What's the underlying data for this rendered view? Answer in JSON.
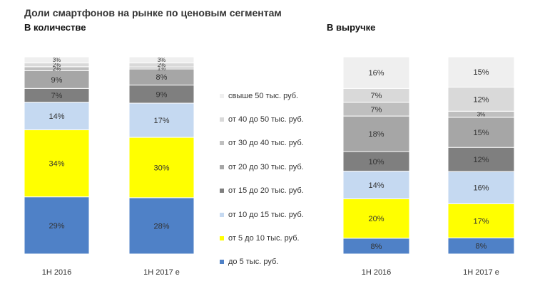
{
  "title": "Доли смартфонов на рынке по ценовым сегментам",
  "chart_data": [
    {
      "type": "bar",
      "stacked": true,
      "subtitle": "В количестве",
      "categories": [
        "1H 2016",
        "1H 2017 e"
      ],
      "series": [
        {
          "name": "до 5 тыс. руб.",
          "color": "#4f81c7",
          "values": [
            29,
            28
          ],
          "labels": [
            "29%",
            "28%"
          ]
        },
        {
          "name": "от 5 до 10 тыс. руб.",
          "color": "#ffff00",
          "values": [
            34,
            30
          ],
          "labels": [
            "34%",
            "30%"
          ]
        },
        {
          "name": "от 10 до 15 тыс. руб.",
          "color": "#c5d9f1",
          "values": [
            14,
            17
          ],
          "labels": [
            "14%",
            "17%"
          ]
        },
        {
          "name": "от 15 до 20 тыс. руб.",
          "color": "#7f7f7f",
          "values": [
            7,
            9
          ],
          "labels": [
            "7%",
            "9%"
          ]
        },
        {
          "name": "от 20 до 30 тыс. руб.",
          "color": "#a6a6a6",
          "values": [
            9,
            8
          ],
          "labels": [
            "9%",
            "8%"
          ]
        },
        {
          "name": "от 30 до 40 тыс. руб.",
          "color": "#bfbfbf",
          "values": [
            2,
            1
          ],
          "labels": [
            "2%",
            "1%"
          ]
        },
        {
          "name": "от 40 до 50 тыс. руб.",
          "color": "#d9d9d9",
          "values": [
            2,
            2
          ],
          "labels": [
            "2%",
            "2%"
          ]
        },
        {
          "name": "свыше 50 тыс. руб.",
          "color": "#efefef",
          "values": [
            3,
            3
          ],
          "labels": [
            "3%",
            "3%"
          ]
        }
      ]
    },
    {
      "type": "bar",
      "stacked": true,
      "subtitle": "В выручке",
      "categories": [
        "1H 2016",
        "1H 2017 e"
      ],
      "series": [
        {
          "name": "до 5 тыс. руб.",
          "color": "#4f81c7",
          "values": [
            8,
            8
          ],
          "labels": [
            "8%",
            "8%"
          ]
        },
        {
          "name": "от 5 до 10 тыс. руб.",
          "color": "#ffff00",
          "values": [
            20,
            17
          ],
          "labels": [
            "20%",
            "17%"
          ]
        },
        {
          "name": "от 10 до 15 тыс. руб.",
          "color": "#c5d9f1",
          "values": [
            14,
            16
          ],
          "labels": [
            "14%",
            "16%"
          ]
        },
        {
          "name": "от 15 до 20 тыс. руб.",
          "color": "#7f7f7f",
          "values": [
            10,
            12
          ],
          "labels": [
            "10%",
            "12%"
          ]
        },
        {
          "name": "от 20 до 30 тыс. руб.",
          "color": "#a6a6a6",
          "values": [
            18,
            15
          ],
          "labels": [
            "18%",
            "15%"
          ]
        },
        {
          "name": "от 30 до 40 тыс. руб.",
          "color": "#bfbfbf",
          "values": [
            7,
            3
          ],
          "labels": [
            "7%",
            "3%"
          ]
        },
        {
          "name": "от 40 до 50 тыс. руб.",
          "color": "#d9d9d9",
          "values": [
            7,
            12
          ],
          "labels": [
            "7%",
            "12%"
          ]
        },
        {
          "name": "свыше 50 тыс. руб.",
          "color": "#efefef",
          "values": [
            16,
            15
          ],
          "labels": [
            "16%",
            "15%"
          ]
        }
      ]
    }
  ],
  "legend": [
    {
      "label": "свыше 50 тыс. руб.",
      "color": "#efefef"
    },
    {
      "label": "от 40 до 50 тыс. руб.",
      "color": "#d9d9d9"
    },
    {
      "label": "от 30  до 40 тыс. руб.",
      "color": "#bfbfbf"
    },
    {
      "label": "от 20 до 30 тыс. руб.",
      "color": "#a6a6a6"
    },
    {
      "label": "от 15 до 20 тыс. руб.",
      "color": "#7f7f7f"
    },
    {
      "label": "от 10 до 15 тыс. руб.",
      "color": "#c5d9f1"
    },
    {
      "label": "от 5 до 10 тыс. руб.",
      "color": "#ffff00"
    },
    {
      "label": "до 5 тыс. руб.",
      "color": "#4f81c7"
    }
  ]
}
